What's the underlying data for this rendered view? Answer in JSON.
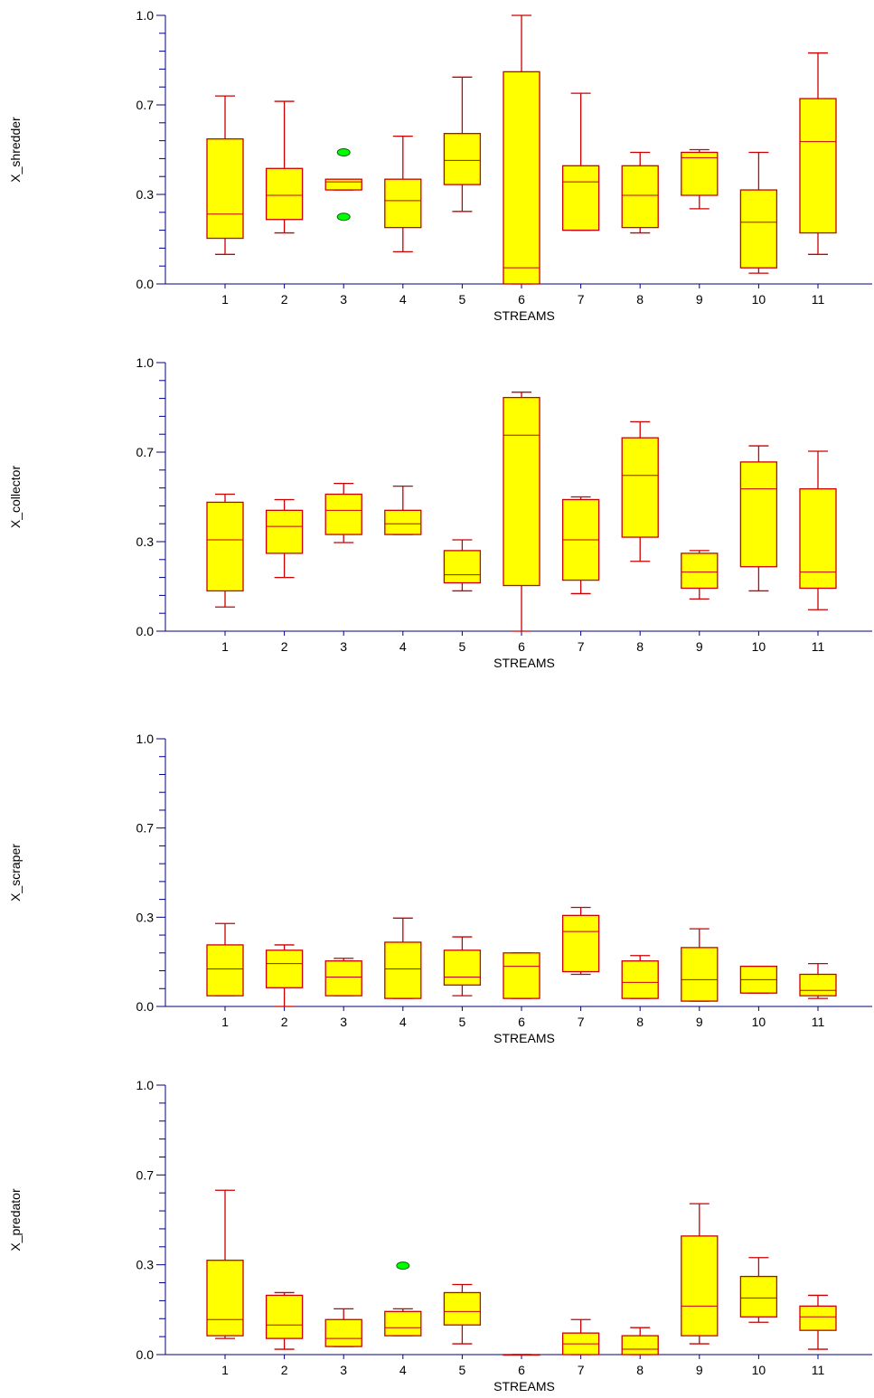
{
  "colors": {
    "axis": "#00007f",
    "box_fill": "#ffff00",
    "box_stroke": "#cc0000",
    "outlier_fill": "#00ff00",
    "outlier_stroke": "#006600"
  },
  "chart_data": [
    {
      "type": "boxplot",
      "title": "",
      "ylabel": "X_shredder",
      "xlabel": "STREAMS",
      "ylim": [
        0,
        1
      ],
      "yticks": [
        "0.0",
        "0.3",
        "0.7",
        "1.0"
      ],
      "categories": [
        "1",
        "2",
        "3",
        "4",
        "5",
        "6",
        "7",
        "8",
        "9",
        "10",
        "11"
      ],
      "boxes": [
        {
          "whisker_low": 0.11,
          "q1": 0.17,
          "median": 0.26,
          "q3": 0.54,
          "whisker_high": 0.7
        },
        {
          "whisker_low": 0.19,
          "q1": 0.24,
          "median": 0.33,
          "q3": 0.43,
          "whisker_high": 0.68
        },
        {
          "whisker_low": 0.35,
          "q1": 0.35,
          "median": 0.38,
          "q3": 0.39,
          "whisker_high": 0.39
        },
        {
          "whisker_low": 0.12,
          "q1": 0.21,
          "median": 0.31,
          "q3": 0.39,
          "whisker_high": 0.55
        },
        {
          "whisker_low": 0.27,
          "q1": 0.37,
          "median": 0.46,
          "q3": 0.56,
          "whisker_high": 0.77
        },
        {
          "whisker_low": 0.0,
          "q1": 0.0,
          "median": 0.06,
          "q3": 0.79,
          "whisker_high": 1.0
        },
        {
          "whisker_low": 0.2,
          "q1": 0.2,
          "median": 0.38,
          "q3": 0.44,
          "whisker_high": 0.71
        },
        {
          "whisker_low": 0.19,
          "q1": 0.21,
          "median": 0.33,
          "q3": 0.44,
          "whisker_high": 0.49
        },
        {
          "whisker_low": 0.28,
          "q1": 0.33,
          "median": 0.47,
          "q3": 0.49,
          "whisker_high": 0.5
        },
        {
          "whisker_low": 0.04,
          "q1": 0.06,
          "median": 0.23,
          "q3": 0.35,
          "whisker_high": 0.49
        },
        {
          "whisker_low": 0.11,
          "q1": 0.19,
          "median": 0.53,
          "q3": 0.69,
          "whisker_high": 0.86
        }
      ],
      "outliers": [
        {
          "category": "3",
          "value": 0.49
        },
        {
          "category": "3",
          "value": 0.25
        }
      ]
    },
    {
      "type": "boxplot",
      "title": "",
      "ylabel": "X_collector",
      "xlabel": "STREAMS",
      "ylim": [
        0,
        1
      ],
      "yticks": [
        "0.0",
        "0.3",
        "0.7",
        "1.0"
      ],
      "categories": [
        "1",
        "2",
        "3",
        "4",
        "5",
        "6",
        "7",
        "8",
        "9",
        "10",
        "11"
      ],
      "boxes": [
        {
          "whisker_low": 0.09,
          "q1": 0.15,
          "median": 0.34,
          "q3": 0.48,
          "whisker_high": 0.51
        },
        {
          "whisker_low": 0.2,
          "q1": 0.29,
          "median": 0.39,
          "q3": 0.45,
          "whisker_high": 0.49
        },
        {
          "whisker_low": 0.33,
          "q1": 0.36,
          "median": 0.45,
          "q3": 0.51,
          "whisker_high": 0.55
        },
        {
          "whisker_low": 0.36,
          "q1": 0.36,
          "median": 0.4,
          "q3": 0.45,
          "whisker_high": 0.54
        },
        {
          "whisker_low": 0.15,
          "q1": 0.18,
          "median": 0.21,
          "q3": 0.3,
          "whisker_high": 0.34
        },
        {
          "whisker_low": 0.0,
          "q1": 0.17,
          "median": 0.73,
          "q3": 0.87,
          "whisker_high": 0.89
        },
        {
          "whisker_low": 0.14,
          "q1": 0.19,
          "median": 0.34,
          "q3": 0.49,
          "whisker_high": 0.5
        },
        {
          "whisker_low": 0.26,
          "q1": 0.35,
          "median": 0.58,
          "q3": 0.72,
          "whisker_high": 0.78
        },
        {
          "whisker_low": 0.12,
          "q1": 0.16,
          "median": 0.22,
          "q3": 0.29,
          "whisker_high": 0.3
        },
        {
          "whisker_low": 0.15,
          "q1": 0.24,
          "median": 0.53,
          "q3": 0.63,
          "whisker_high": 0.69
        },
        {
          "whisker_low": 0.08,
          "q1": 0.16,
          "median": 0.22,
          "q3": 0.53,
          "whisker_high": 0.67
        }
      ],
      "outliers": []
    },
    {
      "type": "boxplot",
      "title": "",
      "ylabel": "X_scraper",
      "xlabel": "STREAMS",
      "ylim": [
        0,
        1
      ],
      "yticks": [
        "0.0",
        "0.3",
        "0.7",
        "1.0"
      ],
      "categories": [
        "1",
        "2",
        "3",
        "4",
        "5",
        "6",
        "7",
        "8",
        "9",
        "10",
        "11"
      ],
      "boxes": [
        {
          "whisker_low": 0.04,
          "q1": 0.04,
          "median": 0.14,
          "q3": 0.23,
          "whisker_high": 0.31
        },
        {
          "whisker_low": 0.0,
          "q1": 0.07,
          "median": 0.16,
          "q3": 0.21,
          "whisker_high": 0.23
        },
        {
          "whisker_low": 0.04,
          "q1": 0.04,
          "median": 0.11,
          "q3": 0.17,
          "whisker_high": 0.18
        },
        {
          "whisker_low": 0.03,
          "q1": 0.03,
          "median": 0.14,
          "q3": 0.24,
          "whisker_high": 0.33
        },
        {
          "whisker_low": 0.04,
          "q1": 0.08,
          "median": 0.11,
          "q3": 0.21,
          "whisker_high": 0.26
        },
        {
          "whisker_low": 0.03,
          "q1": 0.03,
          "median": 0.15,
          "q3": 0.2,
          "whisker_high": 0.2
        },
        {
          "whisker_low": 0.12,
          "q1": 0.13,
          "median": 0.28,
          "q3": 0.34,
          "whisker_high": 0.37
        },
        {
          "whisker_low": 0.03,
          "q1": 0.03,
          "median": 0.09,
          "q3": 0.17,
          "whisker_high": 0.19
        },
        {
          "whisker_low": 0.02,
          "q1": 0.02,
          "median": 0.1,
          "q3": 0.22,
          "whisker_high": 0.29
        },
        {
          "whisker_low": 0.05,
          "q1": 0.05,
          "median": 0.1,
          "q3": 0.15,
          "whisker_high": 0.15
        },
        {
          "whisker_low": 0.03,
          "q1": 0.04,
          "median": 0.06,
          "q3": 0.12,
          "whisker_high": 0.16
        }
      ],
      "outliers": []
    },
    {
      "type": "boxplot",
      "title": "",
      "ylabel": "X_predator",
      "xlabel": "STREAMS",
      "ylim": [
        0,
        1
      ],
      "yticks": [
        "0.0",
        "0.3",
        "0.7",
        "1.0"
      ],
      "categories": [
        "1",
        "2",
        "3",
        "4",
        "5",
        "6",
        "7",
        "8",
        "9",
        "10",
        "11"
      ],
      "boxes": [
        {
          "whisker_low": 0.06,
          "q1": 0.07,
          "median": 0.13,
          "q3": 0.35,
          "whisker_high": 0.61
        },
        {
          "whisker_low": 0.02,
          "q1": 0.06,
          "median": 0.11,
          "q3": 0.22,
          "whisker_high": 0.23
        },
        {
          "whisker_low": 0.03,
          "q1": 0.03,
          "median": 0.06,
          "q3": 0.13,
          "whisker_high": 0.17
        },
        {
          "whisker_low": 0.07,
          "q1": 0.07,
          "median": 0.1,
          "q3": 0.16,
          "whisker_high": 0.17
        },
        {
          "whisker_low": 0.04,
          "q1": 0.11,
          "median": 0.16,
          "q3": 0.23,
          "whisker_high": 0.26
        },
        {
          "whisker_low": 0.0,
          "q1": 0.0,
          "median": 0.0,
          "q3": 0.0,
          "whisker_high": 0.0
        },
        {
          "whisker_low": 0.0,
          "q1": 0.0,
          "median": 0.04,
          "q3": 0.08,
          "whisker_high": 0.13
        },
        {
          "whisker_low": 0.0,
          "q1": 0.0,
          "median": 0.02,
          "q3": 0.07,
          "whisker_high": 0.1
        },
        {
          "whisker_low": 0.04,
          "q1": 0.07,
          "median": 0.18,
          "q3": 0.44,
          "whisker_high": 0.56
        },
        {
          "whisker_low": 0.12,
          "q1": 0.14,
          "median": 0.21,
          "q3": 0.29,
          "whisker_high": 0.36
        },
        {
          "whisker_low": 0.02,
          "q1": 0.09,
          "median": 0.14,
          "q3": 0.18,
          "whisker_high": 0.22
        }
      ],
      "outliers": [
        {
          "category": "4",
          "value": 0.33
        }
      ]
    }
  ]
}
